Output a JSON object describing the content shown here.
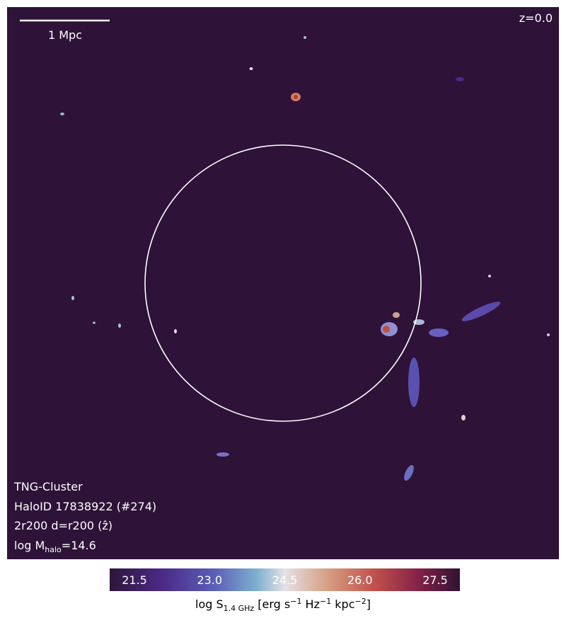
{
  "map": {
    "scale_bar": "1 Mpc",
    "redshift": "z=0.0",
    "info": {
      "simulation": "TNG-Cluster",
      "halo": "HaloID 17838922 (#274)",
      "projection": "2r200 d=r200 (ẑ)",
      "mass": {
        "prefix": "log M",
        "subscript": "halo",
        "suffix": "=14.6"
      }
    }
  },
  "colorbar": {
    "ticks": [
      "21.5",
      "23.0",
      "24.5",
      "26.0",
      "27.5"
    ],
    "label": {
      "prefix": "log S",
      "subscript": "1.4 GHz",
      "unit1": " [erg s",
      "exp1": "−1",
      "unit2": " Hz",
      "exp2": "−1",
      "unit3": " kpc",
      "exp3": "−2",
      "close": "]"
    }
  }
}
